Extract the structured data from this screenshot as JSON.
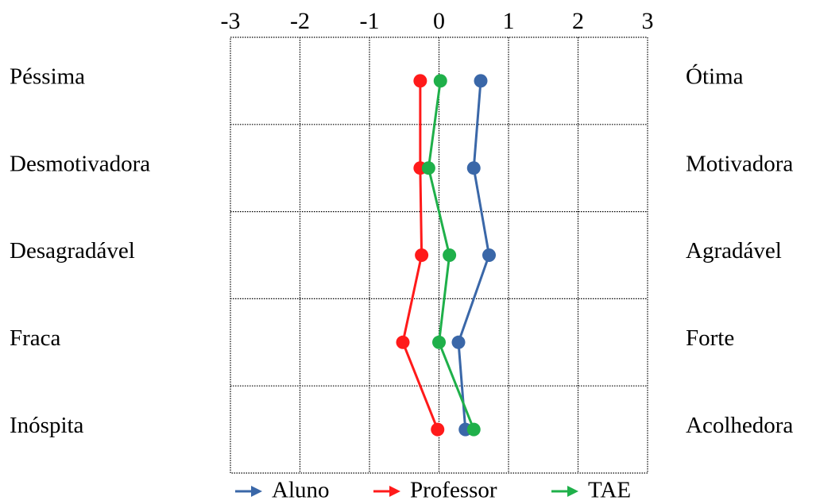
{
  "chart_data": {
    "type": "line",
    "orientation": "horizontal-profile",
    "x_ticks": [
      "-3",
      "-2",
      "-1",
      "0",
      "1",
      "2",
      "3"
    ],
    "xlim": [
      -3,
      3
    ],
    "left_labels": [
      "Péssima",
      "Desmotivadora",
      "Desagradável",
      "Fraca",
      "Inóspita"
    ],
    "right_labels": [
      "Ótima",
      "Motivadora",
      "Agradável",
      "Forte",
      "Acolhedora"
    ],
    "grid": true,
    "legend_position": "bottom",
    "series": [
      {
        "name": "Aluno",
        "color": "#3a67a8",
        "values": [
          0.6,
          0.5,
          0.72,
          0.28,
          0.38
        ]
      },
      {
        "name": "Professor",
        "color": "#ff1a1a",
        "values": [
          -0.27,
          -0.27,
          -0.25,
          -0.52,
          -0.02
        ]
      },
      {
        "name": "TAE",
        "color": "#1fb04a",
        "values": [
          0.02,
          -0.15,
          0.15,
          0.0,
          0.5
        ]
      }
    ]
  }
}
